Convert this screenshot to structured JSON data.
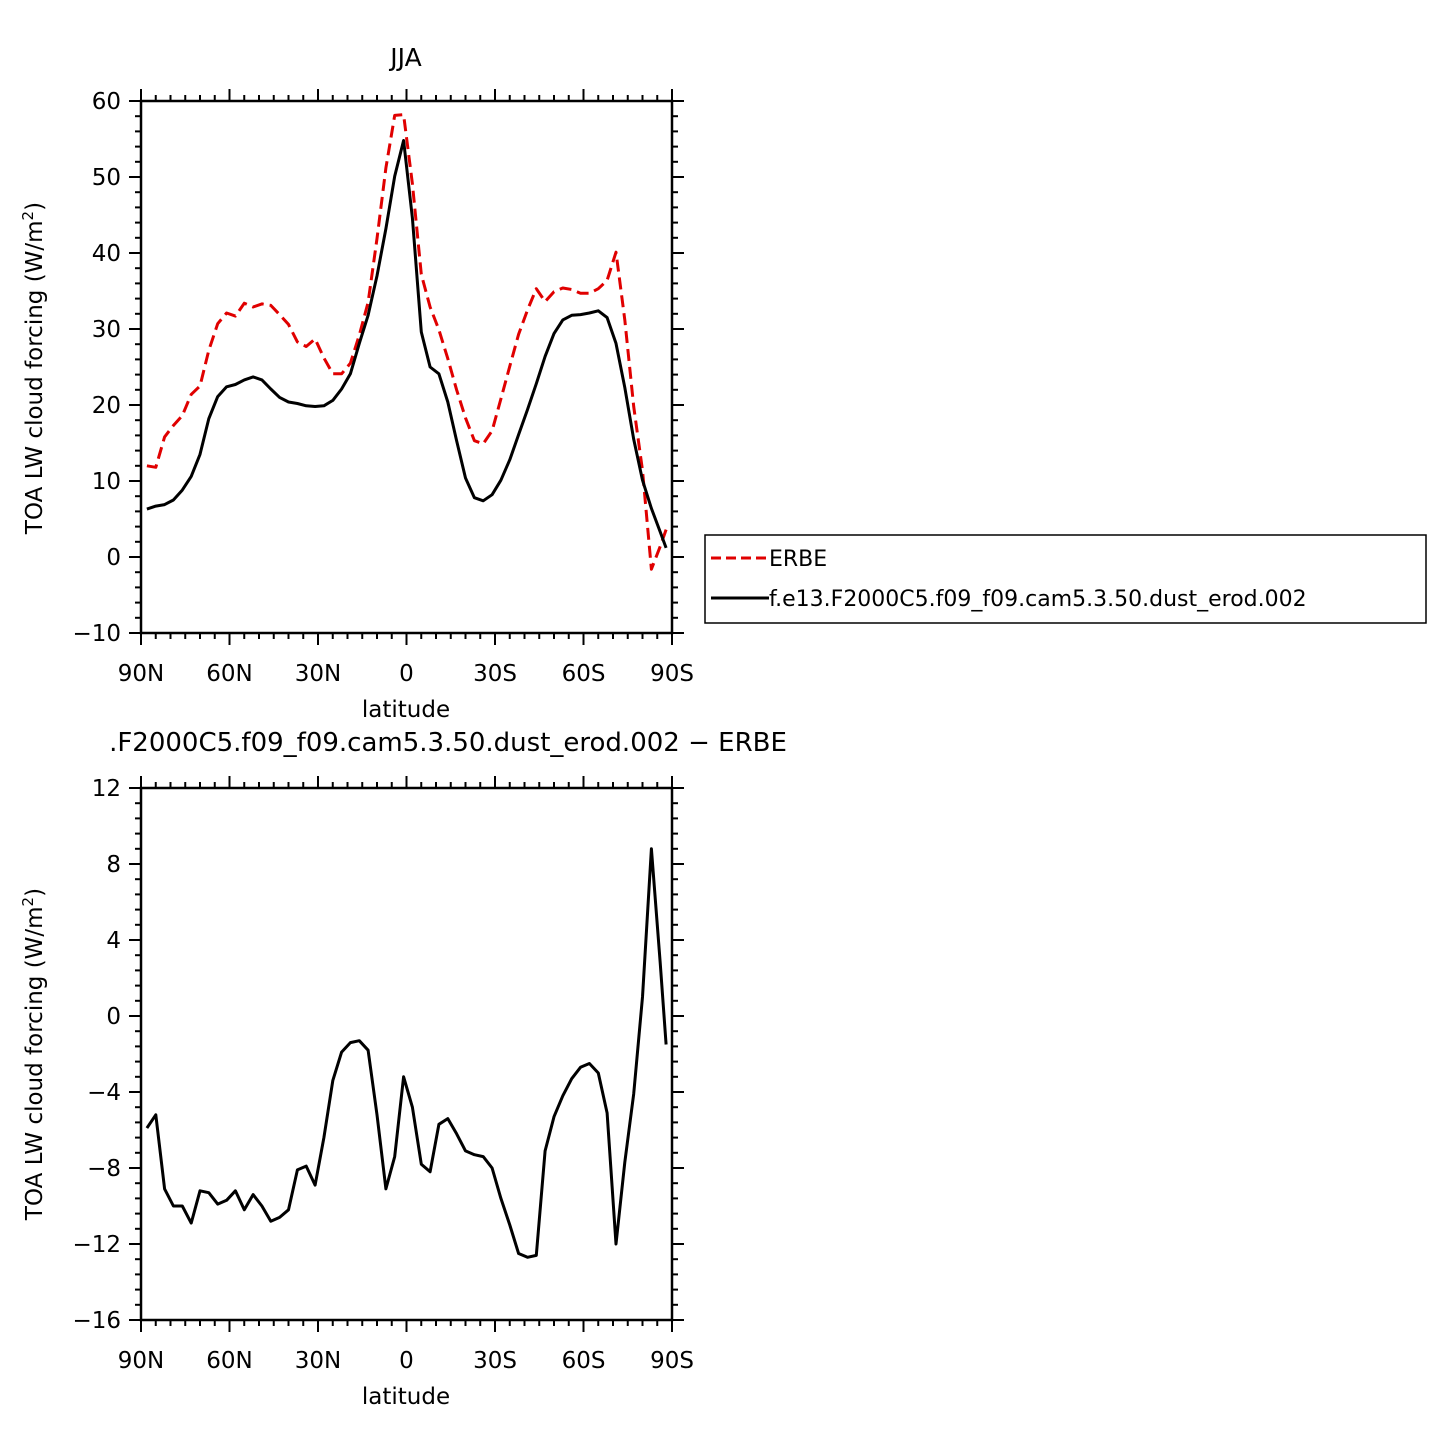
{
  "chart_data": [
    {
      "type": "line",
      "title": "JJA",
      "xlabel": "latitude",
      "ylabel": "TOA LW cloud forcing (W/m",
      "ylabel_sup": "2",
      "ylabel_end": ")",
      "xlim": [
        90,
        -90
      ],
      "ylim": [
        -10,
        60
      ],
      "x_ticks": [
        {
          "value": 90,
          "label": "90N"
        },
        {
          "value": 60,
          "label": "60N"
        },
        {
          "value": 30,
          "label": "30N"
        },
        {
          "value": 0,
          "label": "0"
        },
        {
          "value": -30,
          "label": "30S"
        },
        {
          "value": -60,
          "label": "60S"
        },
        {
          "value": -90,
          "label": "90S"
        }
      ],
      "y_ticks": [
        -10,
        0,
        10,
        20,
        30,
        40,
        50,
        60
      ],
      "y_tick_labels": [
        "−10",
        "0",
        "10",
        "20",
        "30",
        "40",
        "50",
        "60"
      ],
      "legend": {
        "placement": "right",
        "entries": [
          {
            "label": "ERBE",
            "color": "#e00000",
            "dash": "dashed"
          },
          {
            "label": "f.e13.F2000C5.f09_f09.cam5.3.50.dust_erod.002",
            "color": "#000000",
            "dash": "solid"
          }
        ]
      },
      "series": [
        {
          "name": "ERBE",
          "color": "#e00000",
          "dash": "dashed",
          "x": [
            88,
            85,
            82,
            79,
            76,
            73,
            70,
            67,
            64,
            61,
            58,
            55,
            52,
            49,
            46,
            43,
            40,
            37,
            34,
            31,
            28,
            25,
            22,
            19,
            16,
            13,
            10,
            7,
            4,
            1,
            -2,
            -5,
            -8,
            -11,
            -14,
            -17,
            -20,
            -23,
            -26,
            -29,
            -32,
            -35,
            -38,
            -41,
            -44,
            -47,
            -50,
            -53,
            -56,
            -59,
            -62,
            -65,
            -68,
            -71,
            -74,
            -77,
            -80,
            -83,
            -86,
            -88
          ],
          "y": [
            12,
            11.8,
            15.8,
            17.3,
            18.6,
            21.4,
            22.5,
            27.2,
            30.7,
            32.1,
            31.7,
            33.4,
            32.9,
            33.3,
            33.1,
            31.9,
            30.6,
            28.3,
            27.7,
            28.7,
            26.2,
            24.1,
            24.1,
            25.5,
            29.2,
            33.5,
            41.9,
            51.2,
            58.1,
            58.2,
            49.1,
            37.2,
            32.9,
            29.9,
            26.1,
            22,
            18.3,
            15.3,
            14.9,
            16.6,
            20.8,
            25.1,
            29.3,
            32.5,
            35.3,
            33.6,
            34.9,
            35.4,
            35.2,
            34.7,
            34.7,
            35.3,
            36.4,
            40.1,
            31.2,
            19.8,
            11.4,
            -1.6,
            1.4,
            3.6
          ]
        },
        {
          "name": "f.e13.F2000C5.f09_f09.cam5.3.50.dust_erod.002",
          "color": "#000000",
          "dash": "solid",
          "x": [
            88,
            85,
            82,
            79,
            76,
            73,
            70,
            67,
            64,
            61,
            58,
            55,
            52,
            49,
            46,
            43,
            40,
            37,
            34,
            31,
            28,
            25,
            22,
            19,
            16,
            13,
            10,
            7,
            4,
            1,
            -2,
            -5,
            -8,
            -11,
            -14,
            -17,
            -20,
            -23,
            -26,
            -29,
            -32,
            -35,
            -38,
            -41,
            -44,
            -47,
            -50,
            -53,
            -56,
            -59,
            -62,
            -65,
            -68,
            -71,
            -74,
            -77,
            -80,
            -83,
            -86,
            -88
          ],
          "y": [
            6.3,
            6.7,
            6.9,
            7.5,
            8.8,
            10.6,
            13.5,
            18.2,
            21.1,
            22.4,
            22.7,
            23.3,
            23.7,
            23.3,
            22.1,
            21,
            20.4,
            20.2,
            19.9,
            19.8,
            19.9,
            20.6,
            22.1,
            24.1,
            28.1,
            31.8,
            37,
            43.2,
            50.1,
            54.8,
            44.6,
            29.6,
            25,
            24.1,
            20.4,
            15.3,
            10.4,
            7.8,
            7.4,
            8.2,
            10.1,
            12.8,
            16.1,
            19.4,
            22.8,
            26.4,
            29.4,
            31.2,
            31.8,
            31.9,
            32.1,
            32.4,
            31.5,
            28.1,
            22.3,
            15.5,
            10.1,
            6.4,
            3.3,
            1.2
          ]
        }
      ]
    },
    {
      "type": "line",
      "title": ".F2000C5.f09_f09.cam5.3.50.dust_erod.002 − ERBE",
      "xlabel": "latitude",
      "ylabel": "TOA LW cloud forcing (W/m",
      "ylabel_sup": "2",
      "ylabel_end": ")",
      "xlim": [
        90,
        -90
      ],
      "ylim": [
        -16,
        12
      ],
      "x_ticks": [
        {
          "value": 90,
          "label": "90N"
        },
        {
          "value": 60,
          "label": "60N"
        },
        {
          "value": 30,
          "label": "30N"
        },
        {
          "value": 0,
          "label": "0"
        },
        {
          "value": -30,
          "label": "30S"
        },
        {
          "value": -60,
          "label": "60S"
        },
        {
          "value": -90,
          "label": "90S"
        }
      ],
      "y_ticks": [
        -16,
        -12,
        -8,
        -4,
        0,
        4,
        8,
        12
      ],
      "y_tick_labels": [
        "−16",
        "−12",
        "−8",
        "−4",
        "0",
        "4",
        "8",
        "12"
      ],
      "series": [
        {
          "color": "#000000",
          "dash": "solid",
          "x": [
            88,
            85,
            82,
            79,
            76,
            73,
            70,
            67,
            64,
            61,
            58,
            55,
            52,
            49,
            46,
            43,
            40,
            37,
            34,
            31,
            28,
            25,
            22,
            19,
            16,
            13,
            10,
            7,
            4,
            1,
            -2,
            -5,
            -8,
            -11,
            -14,
            -17,
            -20,
            -23,
            -26,
            -29,
            -32,
            -35,
            -38,
            -41,
            -44,
            -47,
            -50,
            -53,
            -56,
            -59,
            -62,
            -65,
            -68,
            -71,
            -74,
            -77,
            -80,
            -83,
            -86,
            -88
          ],
          "y": [
            -5.9,
            -5.2,
            -9.1,
            -10,
            -10,
            -10.9,
            -9.2,
            -9.3,
            -9.9,
            -9.7,
            -9.2,
            -10.2,
            -9.4,
            -10,
            -10.8,
            -10.6,
            -10.2,
            -8.1,
            -7.9,
            -8.9,
            -6.4,
            -3.4,
            -1.9,
            -1.4,
            -1.3,
            -1.8,
            -5.2,
            -9.1,
            -7.4,
            -3.2,
            -4.8,
            -7.8,
            -8.2,
            -5.7,
            -5.4,
            -6.2,
            -7.1,
            -7.3,
            -7.4,
            -8,
            -9.6,
            -11,
            -12.5,
            -12.7,
            -12.6,
            -7.1,
            -5.3,
            -4.2,
            -3.3,
            -2.7,
            -2.5,
            -3,
            -5.1,
            -12,
            -7.7,
            -4.1,
            1,
            8.8,
            2.8,
            -1.5
          ]
        }
      ]
    }
  ]
}
